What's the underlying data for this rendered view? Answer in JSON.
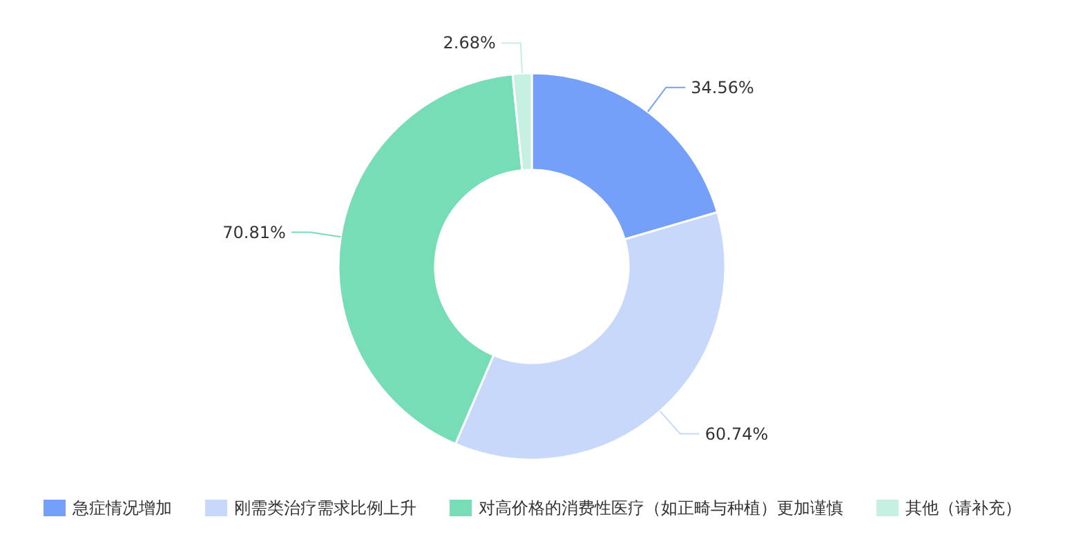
{
  "chart_data": {
    "type": "donut",
    "categories": [
      "急症情况增加",
      "刚需类治疗需求比例上升",
      "对高价格的消费性医疗（如正畸与种植）更加谨慎",
      "其他（请补充）"
    ],
    "values": [
      34.56,
      60.74,
      70.81,
      2.68
    ],
    "value_labels": [
      "34.56%",
      "60.74%",
      "70.81%",
      "2.68%"
    ],
    "colors": [
      "#74a0fa",
      "#c8d8fb",
      "#76ddb6",
      "#c6f0e1"
    ],
    "legend": "bottom"
  }
}
